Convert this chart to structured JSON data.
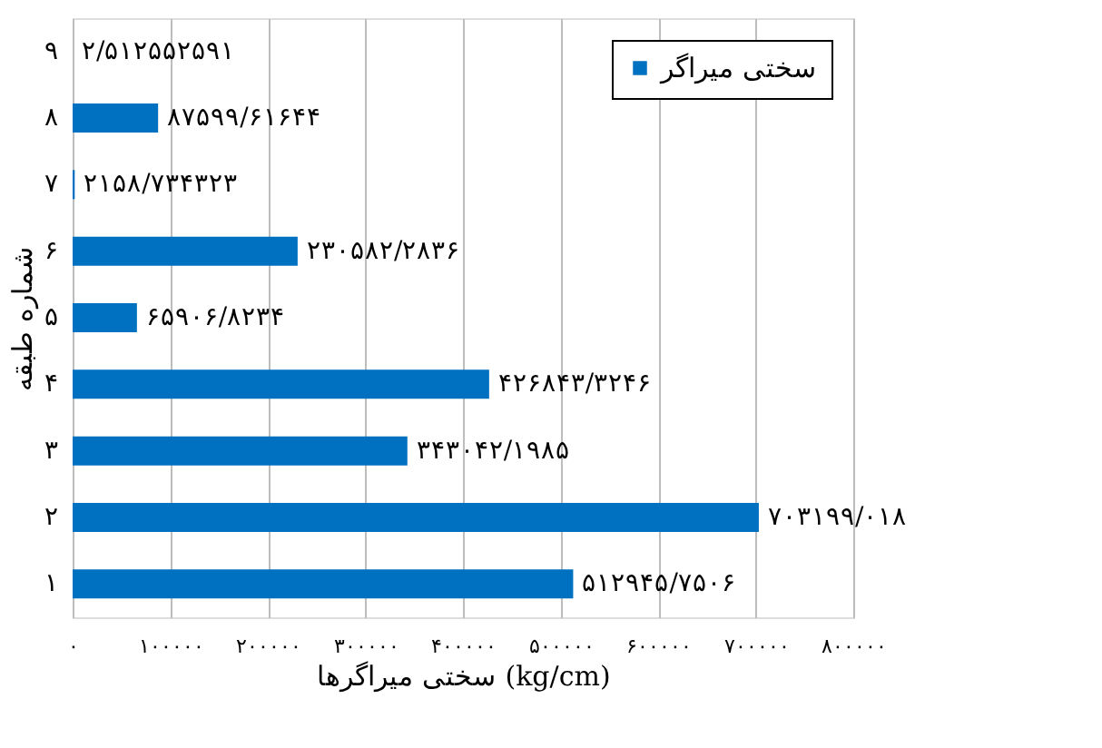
{
  "chart_data": {
    "type": "bar",
    "orientation": "horizontal",
    "xlabel": "سختی میراگرها (kg/cm)",
    "ylabel": "شماره طبقه",
    "categories": [
      "۹",
      "۸",
      "۷",
      "۶",
      "۵",
      "۴",
      "۳",
      "۲",
      "۱"
    ],
    "series": [
      {
        "name": "سختی میراگر",
        "color": "#0070c0",
        "values": [
          2.512552591,
          87599.61644,
          2158.734323,
          230582.2836,
          65906.8234,
          426843.3246,
          343042.1985,
          703199.018,
          512945.7506
        ],
        "value_labels": [
          "۲/۵۱۲۵۵۲۵۹۱",
          "۸۷۵۹۹/۶۱۶۴۴",
          "۲۱۵۸/۷۳۴۳۲۳",
          "۲۳۰۵۸۲/۲۸۳۶",
          "۶۵۹۰۶/۸۲۳۴",
          "۴۲۶۸۴۳/۳۲۴۶",
          "۳۴۳۰۴۲/۱۹۸۵",
          "۷۰۳۱۹۹/۰۱۸",
          "۵۱۲۹۴۵/۷۵۰۶"
        ]
      }
    ],
    "xlim": [
      0,
      800000
    ],
    "xticks": [
      {
        "value": 0,
        "label": "۰"
      },
      {
        "value": 100000,
        "label": "۱۰۰۰۰۰"
      },
      {
        "value": 200000,
        "label": "۲۰۰۰۰۰"
      },
      {
        "value": 300000,
        "label": "۳۰۰۰۰۰"
      },
      {
        "value": 400000,
        "label": "۴۰۰۰۰۰"
      },
      {
        "value": 500000,
        "label": "۵۰۰۰۰۰"
      },
      {
        "value": 600000,
        "label": "۶۰۰۰۰۰"
      },
      {
        "value": 700000,
        "label": "۷۰۰۰۰۰"
      },
      {
        "value": 800000,
        "label": "۸۰۰۰۰۰"
      }
    ],
    "grid": "x",
    "legend": "top right"
  }
}
